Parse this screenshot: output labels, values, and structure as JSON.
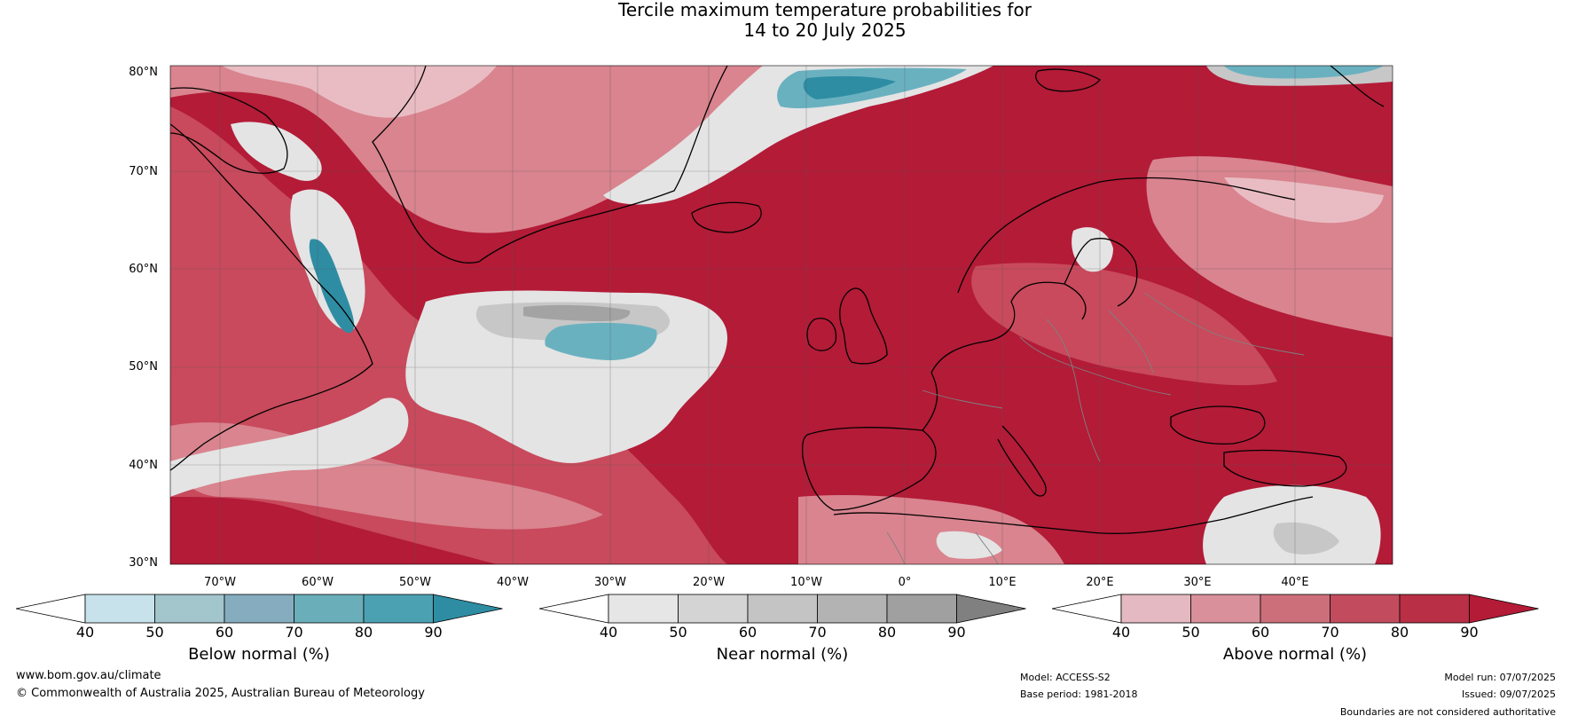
{
  "title": {
    "line1": "Tercile maximum temperature probabilities for",
    "line2": "14 to 20 July 2025"
  },
  "map": {
    "lat_labels": [
      "80°N",
      "70°N",
      "60°N",
      "50°N",
      "40°N",
      "30°N"
    ],
    "lon_labels": [
      "70°W",
      "60°W",
      "50°W",
      "40°W",
      "30°W",
      "20°W",
      "10°W",
      "0°",
      "10°E",
      "20°E",
      "30°E",
      "40°E"
    ],
    "colors": {
      "above_dark": "#b31b37",
      "above_mid": "#c84a5c",
      "above_light": "#d9848f",
      "above_pale": "#e9bcc3",
      "near_light": "#e4e4e4",
      "near_mid": "#c7c7c7",
      "near_dark": "#a3a3a3",
      "below_light": "#c6e0e7",
      "below_mid": "#6ab1c0",
      "below_dark": "#2e8da3",
      "coast": "#000000",
      "borders": "#808080"
    }
  },
  "colorbars": [
    {
      "label": "Below normal (%)",
      "ticks": [
        "40",
        "50",
        "60",
        "70",
        "80",
        "90"
      ],
      "colors": [
        "#ffffff",
        "#c7e2ea",
        "#a3c5cc",
        "#86adbf",
        "#6aaeba",
        "#4ba1b2",
        "#2e8da3"
      ]
    },
    {
      "label": "Near normal (%)",
      "ticks": [
        "40",
        "50",
        "60",
        "70",
        "80",
        "90"
      ],
      "colors": [
        "#ffffff",
        "#e6e6e6",
        "#d4d4d4",
        "#c4c4c4",
        "#b3b3b3",
        "#a0a0a0",
        "#808080"
      ]
    },
    {
      "label": "Above normal (%)",
      "ticks": [
        "40",
        "50",
        "60",
        "70",
        "80",
        "90"
      ],
      "colors": [
        "#ffffff",
        "#e5b9c1",
        "#d9909a",
        "#cc6f7b",
        "#c24c5d",
        "#b92f45",
        "#b31b37"
      ]
    }
  ],
  "footer": {
    "website": "www.bom.gov.au/climate",
    "copyright": "© Commonwealth of Australia 2025, Australian Bureau of Meteorology",
    "model": "Model: ACCESS-S2",
    "base_period": "Base period: 1981-2018",
    "model_run": "Model run: 07/07/2025",
    "issued": "Issued: 09/07/2025",
    "disclaimer": "Boundaries are not considered authoritative"
  }
}
